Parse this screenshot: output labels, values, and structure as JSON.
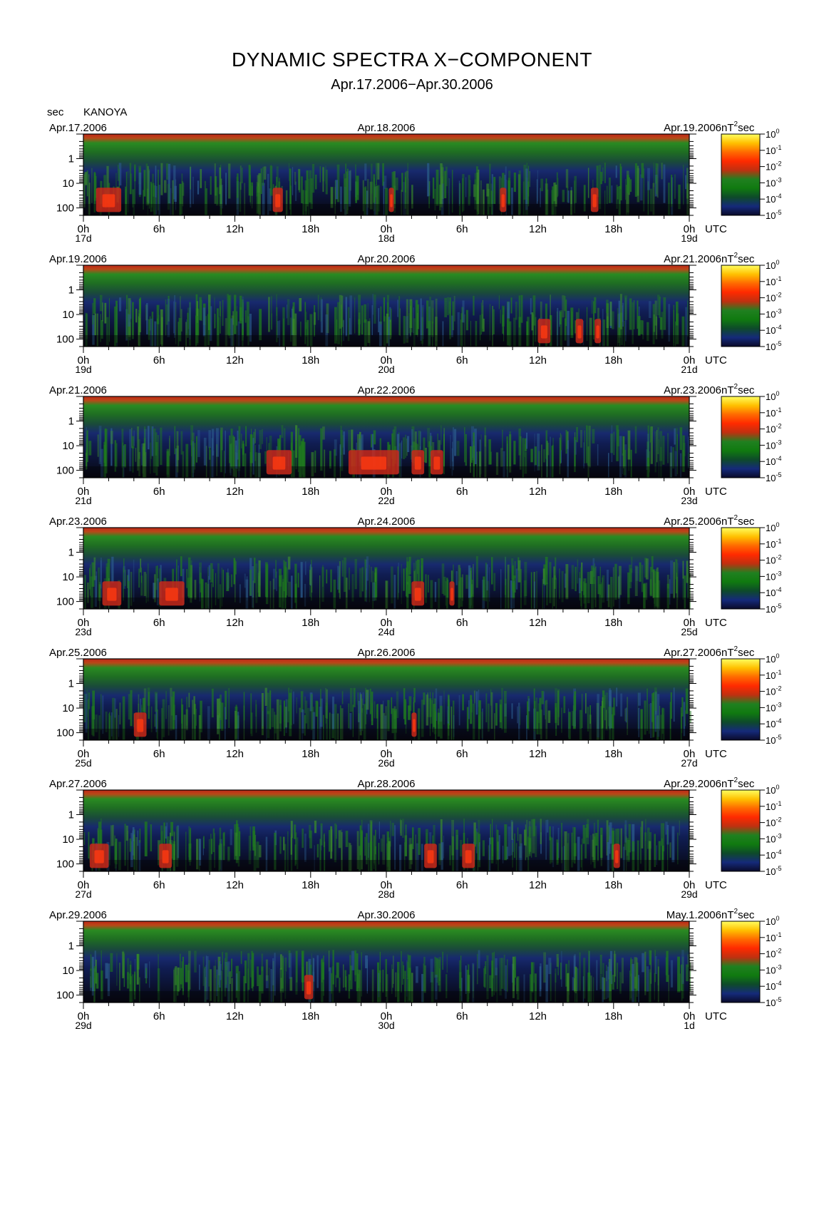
{
  "header": {
    "title": "DYNAMIC SPECTRA X−COMPONENT",
    "subtitle": "Apr.17.2006−Apr.30.2006",
    "y_unit": "sec",
    "station": "KANOYA"
  },
  "chart_data": {
    "type": "heatmap",
    "title": "DYNAMIC SPECTRA X−COMPONENT",
    "subtitle": "Apr.17.2006−Apr.30.2006",
    "station": "KANOYA",
    "ylabel": "sec",
    "y_scale": "log",
    "y_range_sec": [
      0.1,
      200
    ],
    "y_ticks": [
      "1",
      "10",
      "100"
    ],
    "y_tick_values": [
      1,
      10,
      100
    ],
    "x_tick_labels": [
      "0h",
      "6h",
      "12h",
      "18h",
      "0h",
      "6h",
      "12h",
      "18h",
      "0h"
    ],
    "x_unit": "UTC",
    "color_scale": {
      "unit": "nT²sec",
      "unit_base": "nT",
      "unit_exp": "2",
      "unit_suffix": "sec",
      "base": "10",
      "exponents": [
        "0",
        "-1",
        "-2",
        "-3",
        "-4",
        "-5"
      ],
      "values": [
        1,
        0.1,
        0.01,
        0.001,
        0.0001,
        1e-05
      ],
      "colors": [
        "#ffff60",
        "#ffc000",
        "#ff6a00",
        "#ff2a00",
        "#c03010",
        "#208020",
        "#107a10",
        "#0e4a2a",
        "#152a7a",
        "#0a0a2a"
      ]
    },
    "panels": [
      {
        "start": "Apr.17.2006",
        "middle": "Apr.18.2006",
        "end": "Apr.19.2006",
        "days": [
          "17d",
          "18d",
          "19d"
        ],
        "red_events_hours": [
          [
            1,
            3
          ],
          [
            15,
            15.8
          ],
          [
            24.2,
            24.6
          ],
          [
            33,
            33.5
          ],
          [
            40.2,
            40.8
          ]
        ]
      },
      {
        "start": "Apr.19.2006",
        "middle": "Apr.20.2006",
        "end": "Apr.21.2006",
        "days": [
          "19d",
          "20d",
          "21d"
        ],
        "red_events_hours": [
          [
            36,
            37
          ],
          [
            39,
            39.6
          ],
          [
            40.5,
            41
          ]
        ]
      },
      {
        "start": "Apr.21.2006",
        "middle": "Apr.22.2006",
        "end": "Apr.23.2006",
        "days": [
          "21d",
          "22d",
          "23d"
        ],
        "red_events_hours": [
          [
            14.5,
            16.5
          ],
          [
            21,
            25
          ],
          [
            26,
            27
          ],
          [
            27.5,
            28.5
          ]
        ]
      },
      {
        "start": "Apr.23.2006",
        "middle": "Apr.24.2006",
        "end": "Apr.25.2006",
        "days": [
          "23d",
          "24d",
          "25d"
        ],
        "red_events_hours": [
          [
            1.5,
            3
          ],
          [
            6,
            8
          ],
          [
            26,
            27
          ],
          [
            29,
            29.4
          ]
        ]
      },
      {
        "start": "Apr.25.2006",
        "middle": "Apr.26.2006",
        "end": "Apr.27.2006",
        "days": [
          "25d",
          "26d",
          "27d"
        ],
        "red_events_hours": [
          [
            4,
            5
          ],
          [
            26,
            26.4
          ]
        ]
      },
      {
        "start": "Apr.27.2006",
        "middle": "Apr.28.2006",
        "end": "Apr.29.2006",
        "days": [
          "27d",
          "28d",
          "29d"
        ],
        "red_events_hours": [
          [
            0.5,
            2
          ],
          [
            6,
            7
          ],
          [
            27,
            28
          ],
          [
            30,
            31
          ],
          [
            42,
            42.5
          ]
        ]
      },
      {
        "start": "Apr.29.2006",
        "middle": "Apr.30.2006",
        "end": "May.1.2006",
        "days": [
          "29d",
          "30d",
          "1d"
        ],
        "red_events_hours": [
          [
            17.5,
            18.2
          ]
        ]
      }
    ]
  }
}
